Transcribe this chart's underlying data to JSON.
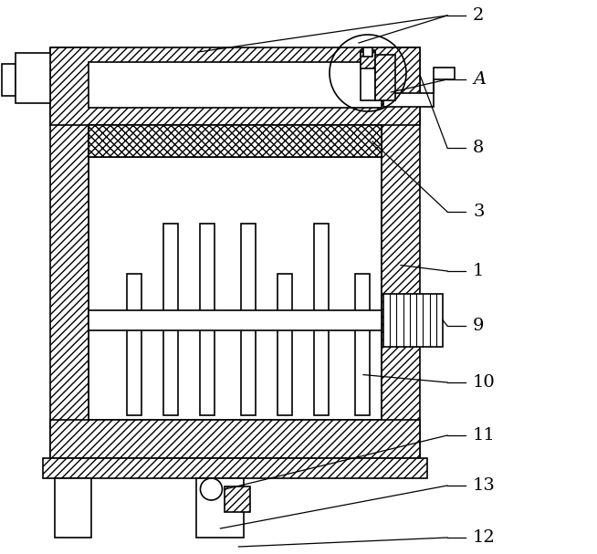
{
  "bg_color": "#ffffff",
  "line_color": "#000000",
  "figsize": [
    6.54,
    6.07
  ],
  "dpi": 100,
  "lw": 1.2,
  "hatch_lw": 0.5
}
